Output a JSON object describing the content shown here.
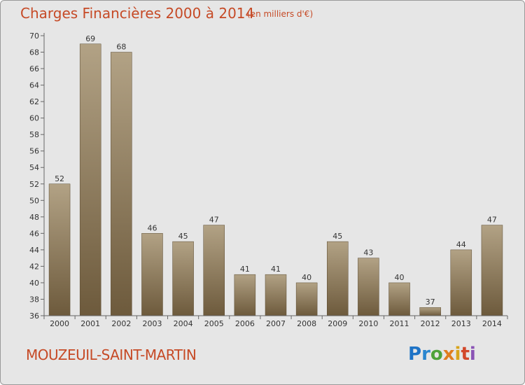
{
  "header": {
    "title": "Charges Financières 2000 à 2014",
    "subtitle": "(en milliers d'€)"
  },
  "footer": {
    "place": "MOUZEUIL-SAINT-MARTIN",
    "logo": [
      "P",
      "r",
      "o",
      "x",
      "i",
      "t",
      "i"
    ]
  },
  "chart_data": {
    "type": "bar",
    "title": "Charges Financières 2000 à 2014",
    "subtitle": "(en milliers d'€)",
    "categories": [
      "2000",
      "2001",
      "2002",
      "2003",
      "2004",
      "2005",
      "2006",
      "2007",
      "2008",
      "2009",
      "2010",
      "2011",
      "2012",
      "2013",
      "2014"
    ],
    "values": [
      52,
      69,
      68,
      46,
      45,
      47,
      41,
      41,
      40,
      45,
      43,
      40,
      37,
      44,
      47
    ],
    "ylim": [
      36,
      70
    ],
    "yticks": [
      36,
      38,
      40,
      42,
      44,
      46,
      48,
      50,
      52,
      54,
      56,
      58,
      60,
      62,
      64,
      66,
      68,
      70
    ],
    "grid": false,
    "bar_color_top": "#b2a285",
    "bar_color_bottom": "#6d5a3c",
    "title_color": "#c64a26"
  }
}
